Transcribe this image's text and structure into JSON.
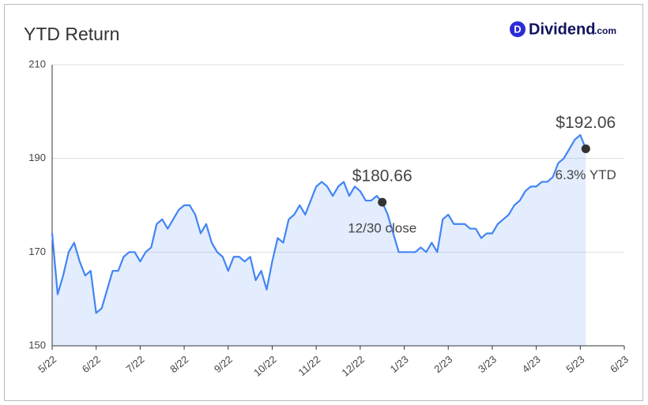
{
  "brand": {
    "icon": "D",
    "name": "Dividend",
    "suffix": ".com"
  },
  "chart_data": {
    "type": "line",
    "title": "YTD Return",
    "categories": [
      "5/22",
      null,
      null,
      null,
      null,
      null,
      null,
      null,
      "6/22",
      null,
      null,
      null,
      null,
      null,
      null,
      null,
      "7/22",
      null,
      null,
      null,
      null,
      null,
      null,
      null,
      "8/22",
      null,
      null,
      null,
      null,
      null,
      null,
      null,
      "9/22",
      null,
      null,
      null,
      null,
      null,
      null,
      null,
      "10/22",
      null,
      null,
      null,
      null,
      null,
      null,
      null,
      "11/22",
      null,
      null,
      null,
      null,
      null,
      null,
      null,
      "12/22",
      null,
      null,
      null,
      null,
      null,
      null,
      null,
      "1/23",
      null,
      null,
      null,
      null,
      null,
      null,
      null,
      "2/23",
      null,
      null,
      null,
      null,
      null,
      null,
      null,
      "3/23",
      null,
      null,
      null,
      null,
      null,
      null,
      null,
      "4/23",
      null,
      null,
      null,
      null,
      null,
      null,
      null,
      "5/23",
      null,
      null,
      null,
      null,
      null,
      null,
      null,
      "6/23"
    ],
    "values": [
      174,
      161,
      165,
      170,
      172,
      168,
      165,
      166,
      157,
      158,
      162,
      166,
      166,
      169,
      170,
      170,
      168,
      170,
      171,
      176,
      177,
      175,
      177,
      179,
      180,
      180,
      178,
      174,
      176,
      172,
      170,
      169,
      166,
      169,
      169,
      168,
      169,
      164,
      166,
      162,
      168,
      173,
      172,
      177,
      178,
      180,
      178,
      181,
      184,
      185,
      184,
      182,
      184,
      185,
      182,
      184,
      183,
      181,
      181,
      182,
      180.66,
      178,
      174,
      170,
      170,
      170,
      170,
      171,
      170,
      172,
      170,
      177,
      178,
      176,
      176,
      176,
      175,
      175,
      173,
      174,
      174,
      176,
      177,
      178,
      180,
      181,
      183,
      184,
      184,
      185,
      185,
      186,
      189,
      190,
      192,
      194,
      195,
      192.06,
      null,
      null,
      null,
      null,
      null,
      null,
      null
    ],
    "value_labels": [
      null,
      null,
      null,
      null,
      null,
      null,
      null,
      null,
      null,
      null,
      null,
      null,
      null,
      null,
      null,
      null,
      null,
      null,
      null,
      null,
      null,
      null,
      null,
      null,
      null,
      null,
      null,
      null,
      null,
      null,
      null,
      null,
      null,
      null,
      null,
      null,
      null,
      null,
      null,
      null,
      null,
      null,
      null,
      null,
      null,
      null,
      null,
      null,
      null,
      null,
      null,
      null,
      null,
      null,
      null,
      null,
      null,
      null,
      null,
      null,
      "$180.66",
      null,
      null,
      null,
      null,
      null,
      null,
      null,
      null,
      null,
      null,
      null,
      null,
      null,
      null,
      null,
      null,
      null,
      null,
      null,
      null,
      null,
      null,
      null,
      null,
      null,
      null,
      null,
      null,
      null,
      null,
      null,
      null,
      null,
      null,
      null,
      null,
      "$192.06",
      null,
      null,
      null,
      null,
      null,
      null,
      null
    ],
    "annotations": [
      "12/30 close",
      "6.3% YTD"
    ],
    "color": "#4285f4",
    "ylim": [
      150,
      210
    ],
    "yticks": [
      150,
      170,
      190,
      210
    ],
    "grid": true
  }
}
